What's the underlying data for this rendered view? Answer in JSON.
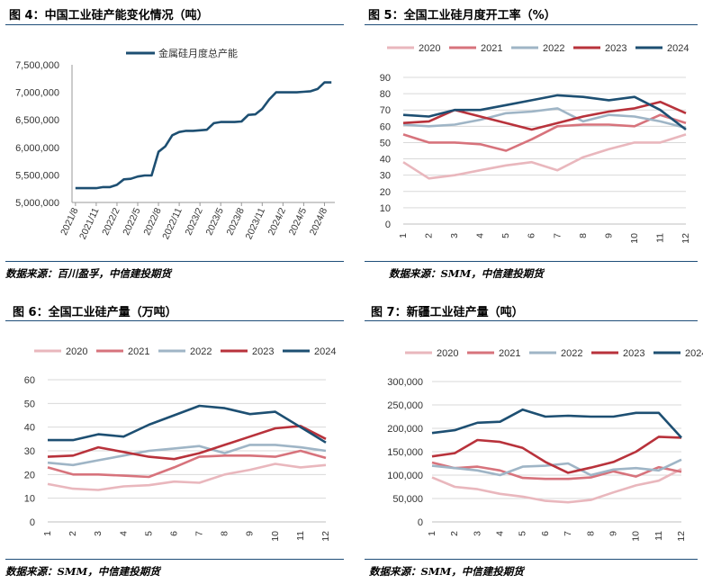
{
  "panels": [
    {
      "id": "p4",
      "title": "图 4：中国工业硅产能变化情况（吨）",
      "source": "数据来源：百川盈孚，中信建投期货"
    },
    {
      "id": "p5",
      "title": "图 5：全国工业硅月度开工率（%）",
      "source": "数据来源：SMM，中信建投期货"
    },
    {
      "id": "p6",
      "title": "图 6：全国工业硅产量（万吨）",
      "source": "数据来源：SMM，中信建投期货"
    },
    {
      "id": "p7",
      "title": "图 7：新疆工业硅产量（吨）",
      "source": "数据来源：SMM，中信建投期货"
    }
  ],
  "colors": {
    "2020": "#e9b7bd",
    "2021": "#d7737c",
    "2022": "#9fb5c6",
    "2023": "#b8323b",
    "2024": "#1d4f72",
    "capacity": "#1d4f72",
    "rule": "#1f4e79"
  },
  "chart_data": [
    {
      "id": "p4",
      "type": "line",
      "x": [
        "2021/8",
        "2021/9",
        "2021/10",
        "2021/11",
        "2021/12",
        "2022/1",
        "2022/2",
        "2022/3",
        "2022/4",
        "2022/5",
        "2022/6",
        "2022/7",
        "2022/8",
        "2022/9",
        "2022/10",
        "2022/11",
        "2022/12",
        "2023/1",
        "2023/2",
        "2023/3",
        "2023/4",
        "2023/5",
        "2023/6",
        "2023/7",
        "2023/8",
        "2023/9",
        "2023/10",
        "2023/11",
        "2023/12",
        "2024/1",
        "2024/2",
        "2024/3",
        "2024/4",
        "2024/5",
        "2024/6",
        "2024/7",
        "2024/8",
        "2024/9"
      ],
      "x_ticks": [
        "2021/8",
        "2021/11",
        "2022/2",
        "2022/5",
        "2022/8",
        "2022/11",
        "2023/2",
        "2023/5",
        "2023/8",
        "2023/11",
        "2024/2",
        "2024/5",
        "2024/8"
      ],
      "series": [
        {
          "name": "金属硅月度总产能",
          "values": [
            5260000,
            5260000,
            5260000,
            5260000,
            5280000,
            5280000,
            5320000,
            5420000,
            5430000,
            5470000,
            5490000,
            5490000,
            5920000,
            6020000,
            6220000,
            6280000,
            6300000,
            6300000,
            6310000,
            6320000,
            6440000,
            6460000,
            6460000,
            6460000,
            6470000,
            6590000,
            6600000,
            6700000,
            6870000,
            7000000,
            7000000,
            7000000,
            7000000,
            7010000,
            7020000,
            7060000,
            7180000,
            7180000
          ]
        }
      ],
      "ylim": [
        5000000,
        7500000
      ],
      "y_ticks": [
        "5,000,000",
        "5,500,000",
        "6,000,000",
        "6,500,000",
        "7,000,000",
        "7,500,000"
      ]
    },
    {
      "id": "p5",
      "type": "line",
      "categories": [
        "1",
        "2",
        "3",
        "4",
        "5",
        "6",
        "7",
        "8",
        "9",
        "10",
        "11",
        "12"
      ],
      "series": [
        {
          "name": "2020",
          "values": [
            38,
            28,
            30,
            33,
            36,
            38,
            33,
            41,
            46,
            50,
            50,
            55
          ]
        },
        {
          "name": "2021",
          "values": [
            55,
            50,
            50,
            49,
            45,
            52,
            60,
            61,
            61,
            60,
            67,
            62
          ]
        },
        {
          "name": "2022",
          "values": [
            61,
            60,
            61,
            64,
            68,
            69,
            71,
            63,
            67,
            66,
            63,
            59
          ]
        },
        {
          "name": "2023",
          "values": [
            62,
            63,
            70,
            66,
            62,
            58,
            62,
            66,
            69,
            71,
            75,
            68
          ]
        },
        {
          "name": "2024",
          "values": [
            67,
            66,
            70,
            70,
            73,
            76,
            79,
            78,
            76,
            78,
            70,
            58
          ]
        }
      ],
      "ylim": [
        0,
        90
      ],
      "y_ticks": [
        "0",
        "10",
        "20",
        "30",
        "40",
        "50",
        "60",
        "70",
        "80",
        "90"
      ]
    },
    {
      "id": "p6",
      "type": "line",
      "categories": [
        "1",
        "2",
        "3",
        "4",
        "5",
        "6",
        "7",
        "8",
        "9",
        "10",
        "11",
        "12"
      ],
      "series": [
        {
          "name": "2020",
          "values": [
            16,
            14,
            13.5,
            15,
            15.5,
            17,
            16.5,
            20,
            22,
            24.5,
            23,
            24
          ]
        },
        {
          "name": "2021",
          "values": [
            23,
            20,
            20,
            19.5,
            19,
            23,
            27.5,
            28,
            28,
            27.5,
            30,
            27
          ]
        },
        {
          "name": "2022",
          "values": [
            25,
            24,
            26,
            28,
            30,
            31,
            32,
            29,
            32.5,
            32.5,
            31.5,
            30
          ]
        },
        {
          "name": "2023",
          "values": [
            27.5,
            28,
            31.5,
            29.5,
            27.5,
            26.5,
            29,
            32.5,
            36,
            39.5,
            40.5,
            35
          ]
        },
        {
          "name": "2024",
          "values": [
            34.5,
            34.5,
            37,
            36,
            41,
            45,
            49,
            48,
            45.5,
            46.5,
            40,
            33.5
          ]
        }
      ],
      "ylim": [
        0,
        60
      ],
      "y_ticks": [
        "0",
        "10",
        "20",
        "30",
        "40",
        "50",
        "60"
      ]
    },
    {
      "id": "p7",
      "type": "line",
      "categories": [
        "1",
        "2",
        "3",
        "4",
        "5",
        "6",
        "7",
        "8",
        "9",
        "10",
        "11",
        "12"
      ],
      "series": [
        {
          "name": "2020",
          "values": [
            95000,
            75000,
            70000,
            60000,
            54000,
            45000,
            42000,
            47000,
            63000,
            78000,
            88000,
            113000
          ]
        },
        {
          "name": "2021",
          "values": [
            127000,
            115000,
            118000,
            110000,
            94000,
            92000,
            92000,
            95000,
            108000,
            97000,
            117000,
            107000
          ]
        },
        {
          "name": "2022",
          "values": [
            120000,
            115000,
            110000,
            100000,
            118000,
            120000,
            125000,
            100000,
            112000,
            115000,
            110000,
            133000
          ]
        },
        {
          "name": "2023",
          "values": [
            140000,
            147000,
            175000,
            171000,
            158000,
            128000,
            105000,
            116000,
            128000,
            150000,
            182000,
            180000
          ]
        },
        {
          "name": "2024",
          "values": [
            190000,
            196000,
            212000,
            214000,
            240000,
            225000,
            227000,
            225000,
            225000,
            233000,
            233000,
            180000
          ]
        }
      ],
      "ylim": [
        0,
        300000
      ],
      "y_ticks": [
        "0",
        "50,000",
        "100,000",
        "150,000",
        "200,000",
        "250,000",
        "300,000"
      ]
    }
  ]
}
